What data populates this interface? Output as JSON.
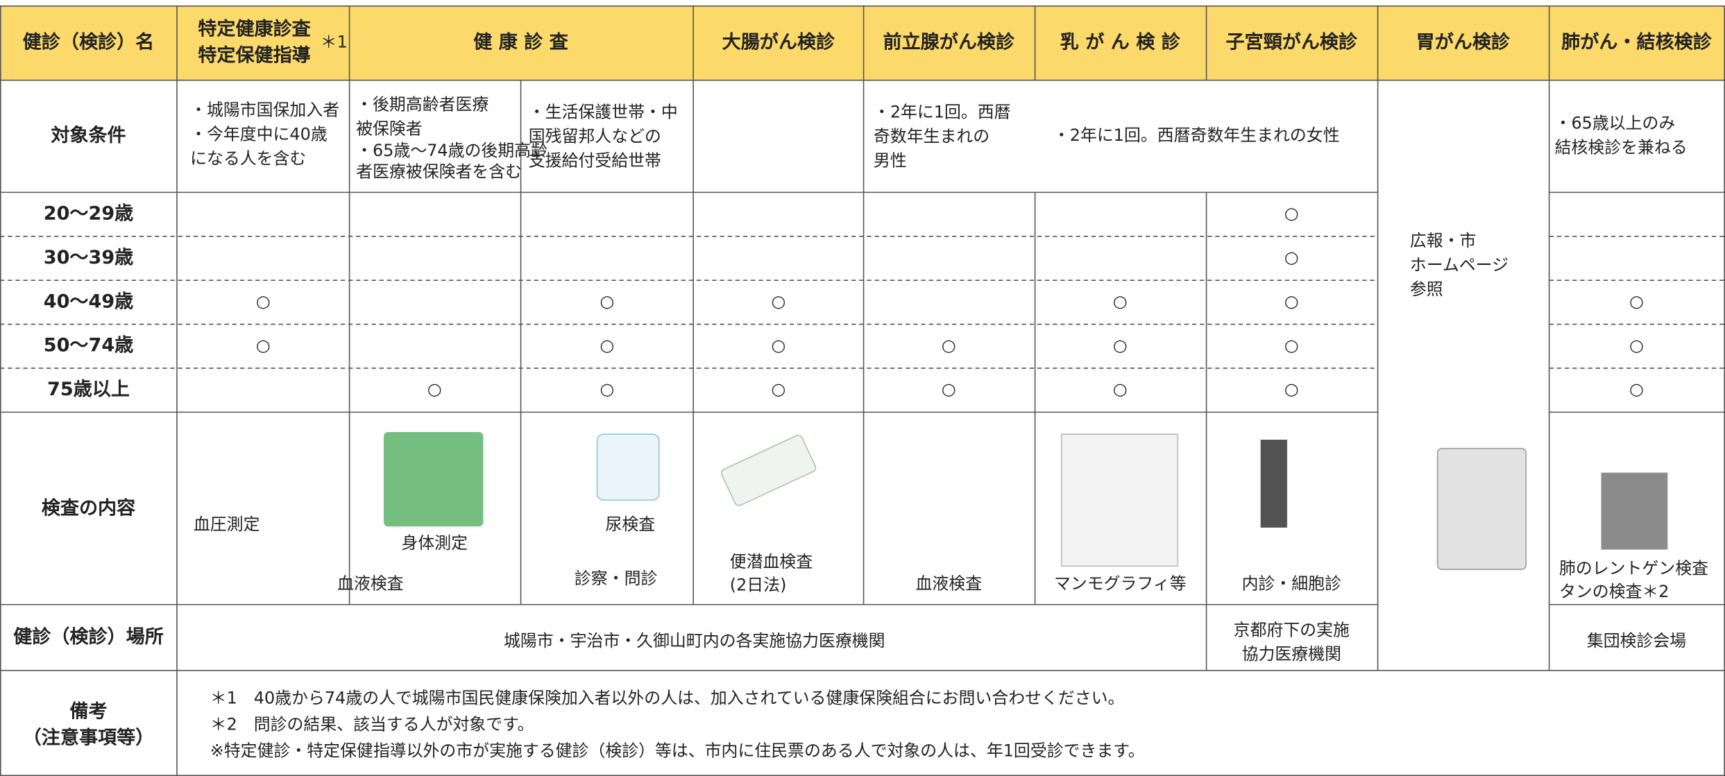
{
  "header": {
    "label": "健診（検診）名",
    "columns": [
      [
        "特定健康診査",
        "特定保健指導"
      ],
      [
        "健 康 診 査"
      ],
      [
        "大腸がん検診"
      ],
      [
        "前立腺がん検診"
      ],
      [
        "乳 が ん 検 診"
      ],
      [
        "子宮頸がん検診"
      ],
      [
        "胃がん検診"
      ],
      [
        "肺がん・結核検診"
      ]
    ],
    "note_mark": "＊1"
  },
  "conditions": {
    "label": "対象条件",
    "cells": [
      {
        "lines": [
          "・城陽市国保加入者",
          "・今年度中に40歳",
          "になる人を含む"
        ]
      },
      {
        "lines": [
          "・後期高齢者医療",
          "被保険者"
        ],
        "small_lines": [
          "・65歳～74歳の後期高齢",
          "者医療被保険者を含む"
        ]
      },
      {
        "lines": [
          "・生活保護世帯・中",
          "国残留邦人などの",
          "支援給付受給世帯"
        ]
      },
      {
        "lines": [
          "・2年に1回。西暦",
          "奇数年生まれの",
          "男性"
        ]
      },
      {
        "lines": [
          "・2年に1回。西暦奇数年生まれの女性"
        ]
      },
      {
        "lines": [
          "・65歳以上のみ",
          "結核検診を兼ねる"
        ]
      }
    ]
  },
  "age_rows": [
    {
      "label": "20～29歳",
      "cells": [
        null,
        null,
        null,
        null,
        null,
        null,
        "○",
        null,
        null
      ]
    },
    {
      "label": "30～39歳",
      "cells": [
        null,
        null,
        null,
        null,
        null,
        null,
        "○",
        null,
        null
      ]
    },
    {
      "label": "40～49歳",
      "cells": [
        "○",
        null,
        "○",
        "○",
        null,
        "○",
        "○",
        null,
        "○"
      ]
    },
    {
      "label": "50～74歳",
      "cells": [
        "○",
        null,
        "○",
        "○",
        "○",
        "○",
        "○",
        null,
        "○"
      ]
    },
    {
      "label": "75歳以上",
      "cells": [
        null,
        "○",
        "○",
        "○",
        "○",
        "○",
        "○",
        null,
        "○"
      ]
    }
  ],
  "stomach_note": [
    "広報・市",
    "ホームページ",
    "参照"
  ],
  "content": {
    "label": "検査の内容",
    "items": [
      [
        "血圧測定"
      ],
      [
        "血液検査"
      ],
      [
        "身体測定"
      ],
      [
        "尿検査"
      ],
      [
        "診察・問診"
      ],
      [
        "便潜血検査",
        "(2日法)"
      ],
      [
        "血液検査"
      ],
      [
        "マンモグラフィ等"
      ],
      [
        "内診・細胞診"
      ],
      [
        "肺のレントゲン検査",
        "タンの検査＊2"
      ]
    ]
  },
  "place": {
    "label": "健診（検診）場所",
    "cells": [
      [
        "城陽市・宇治市・久御山町内の各実施協力医療機関"
      ],
      [
        "京都府下の実施",
        "協力医療機関"
      ],
      [
        "集団検診会場"
      ]
    ]
  },
  "notes": {
    "label": [
      "備考",
      "（注意事項等）"
    ],
    "lines": [
      "＊1　40歳から74歳の人で城陽市国民健康保険加入者以外の人は、加入されている健康保険組合にお問い合わせください。",
      "＊2　問診の結果、該当する人が対象です。",
      "※特定健診・特定保健指導以外の市が実施する健診（検診）等は、市内に住民票のある人で対象の人は、年1回受診できます。"
    ]
  }
}
